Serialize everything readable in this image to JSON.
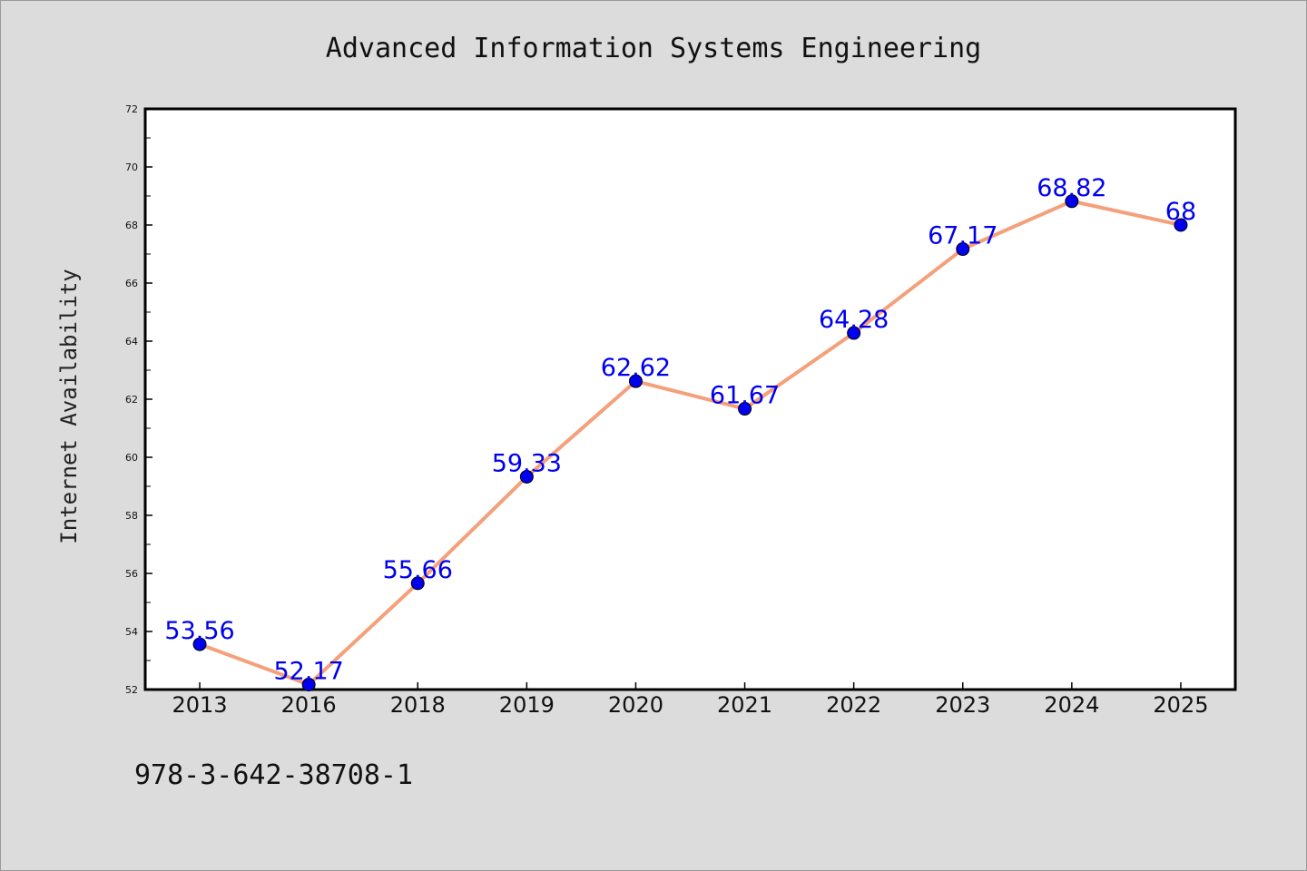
{
  "colors": {
    "background": "#dcdcdc",
    "plot_background": "#ffffff",
    "line": "#f4a07a",
    "marker": "#0000ee",
    "data_label": "#0000ee"
  },
  "footer": {
    "isbn": "978-3-642-38708-1"
  },
  "chart_data": {
    "type": "line",
    "title": "Advanced Information Systems Engineering",
    "xlabel": "",
    "ylabel": "Internet Availability",
    "categories": [
      "2013",
      "2016",
      "2018",
      "2019",
      "2020",
      "2021",
      "2022",
      "2023",
      "2024",
      "2025"
    ],
    "series": [
      {
        "values": [
          53.56,
          52.17,
          55.66,
          59.33,
          62.62,
          61.67,
          64.28,
          67.17,
          68.82,
          68
        ]
      }
    ],
    "data_labels": [
      "53.56",
      "52.17",
      "55.66",
      "59.33",
      "62.62",
      "61.67",
      "64.28",
      "67.17",
      "68.82",
      "68"
    ],
    "ylim": [
      52,
      72
    ],
    "yticks": [
      "52",
      "54",
      "56",
      "58",
      "60",
      "62",
      "64",
      "66",
      "68",
      "70",
      "72"
    ],
    "grid": false,
    "legend": "none"
  }
}
